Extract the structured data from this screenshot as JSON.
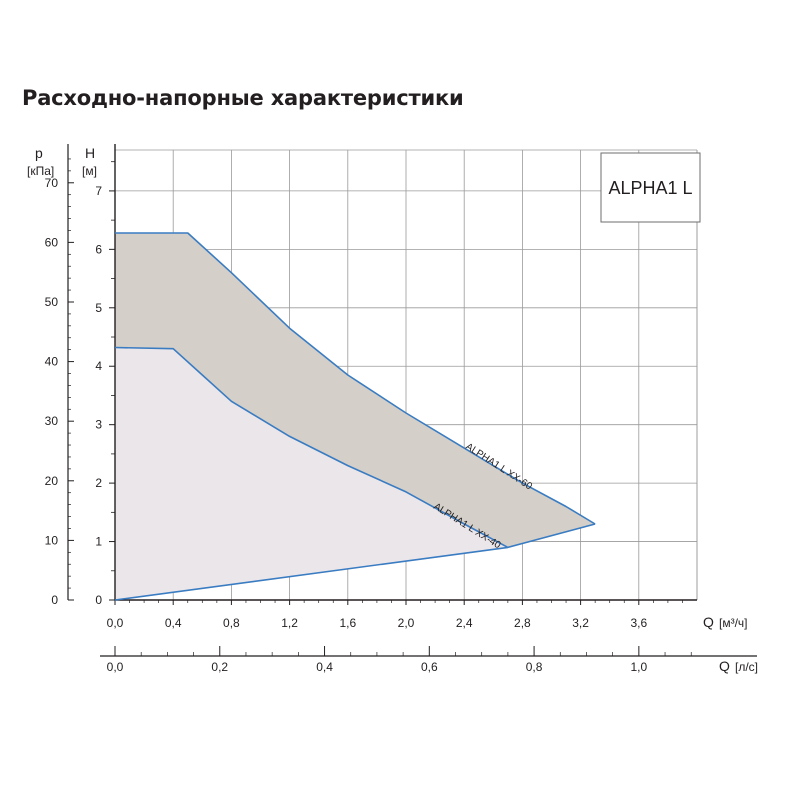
{
  "page": {
    "title": "Расходно-напорные характеристики"
  },
  "chart_data": {
    "type": "area",
    "model_label": "ALPHA1 L",
    "axes": {
      "x_flow_m3h": {
        "letter": "Q",
        "unit": "[м³/ч]",
        "range": [
          0,
          4.0
        ],
        "ticks": [
          "0,0",
          "0,4",
          "0,8",
          "1,2",
          "1,6",
          "2,0",
          "2,4",
          "2,8",
          "3,2",
          "3,6"
        ]
      },
      "x_flow_ls": {
        "letter": "Q",
        "unit": "[л/с]",
        "range": [
          0,
          1.111
        ],
        "ticks": [
          "0,0",
          "0,2",
          "0,4",
          "0,6",
          "0,8",
          "1,0"
        ]
      },
      "y_head_m": {
        "letter": "H",
        "unit": "[м]",
        "range": [
          0,
          7.7
        ],
        "ticks": [
          "0",
          "1",
          "2",
          "3",
          "4",
          "5",
          "6",
          "7"
        ]
      },
      "y_pressure_kpa": {
        "letter": "p",
        "unit": "[кПа]",
        "range": [
          0,
          75.5
        ],
        "ticks": [
          "0",
          "10",
          "20",
          "30",
          "40",
          "50",
          "60",
          "70"
        ]
      }
    },
    "grid": true,
    "series": [
      {
        "name": "ALPHA1 L XX-60",
        "x_label": "Q [м³/ч]",
        "y_label": "H [м]",
        "points": [
          [
            0,
            6.28
          ],
          [
            0.5,
            6.28
          ],
          [
            0.8,
            5.6
          ],
          [
            1.2,
            4.65
          ],
          [
            1.6,
            3.85
          ],
          [
            2.0,
            3.2
          ],
          [
            2.4,
            2.6
          ],
          [
            2.8,
            2.0
          ],
          [
            3.1,
            1.6
          ],
          [
            3.3,
            1.3
          ]
        ]
      },
      {
        "name": "ALPHA1 L XX-40",
        "x_label": "Q [м³/ч]",
        "y_label": "H [м]",
        "points": [
          [
            0,
            4.32
          ],
          [
            0.4,
            4.3
          ],
          [
            0.6,
            3.85
          ],
          [
            0.8,
            3.4
          ],
          [
            1.2,
            2.8
          ],
          [
            1.6,
            2.3
          ],
          [
            2.0,
            1.85
          ],
          [
            2.4,
            1.3
          ],
          [
            2.7,
            0.9
          ]
        ]
      },
      {
        "name": "",
        "x_label": "Q [м³/ч]",
        "y_label": "H [м]",
        "points": [
          [
            0,
            0
          ],
          [
            2.7,
            0.9
          ],
          [
            3.3,
            1.3
          ]
        ]
      }
    ],
    "colors": {
      "curve": "#3a7cc2",
      "fill_upper": "#d4cfc8",
      "fill_lower": "#ebe6ea",
      "grid": "#9a9a9a",
      "axis": "#231f20"
    }
  }
}
